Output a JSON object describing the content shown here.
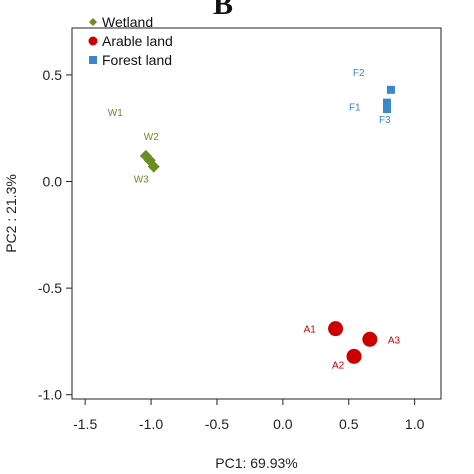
{
  "chart_data": {
    "type": "scatter",
    "panel_label": "B",
    "xlabel": "PC1: 69.93%",
    "ylabel": "PC2 : 21.3%",
    "xlim": [
      -1.6,
      1.2
    ],
    "ylim": [
      -1.02,
      0.72
    ],
    "xticks": [
      -1.5,
      -1.0,
      -0.5,
      0.0,
      0.5,
      1.0
    ],
    "xtick_labels": [
      "-1.5",
      "-1.0",
      "-0.5",
      "0.0",
      "0.5",
      "1.0"
    ],
    "yticks": [
      -1.0,
      -0.5,
      0.0,
      0.5
    ],
    "ytick_labels": [
      "-1.0",
      "-0.5",
      "0.0",
      "0.5"
    ],
    "grid": false,
    "legend_position": "top-left",
    "series": [
      {
        "name": "Wetland",
        "color": "#6b8e23",
        "marker": "diamond",
        "points": [
          {
            "label": "W1",
            "x": -1.04,
            "y": 0.12
          },
          {
            "label": "W2",
            "x": -1.01,
            "y": 0.1
          },
          {
            "label": "W3",
            "x": -0.98,
            "y": 0.07
          }
        ]
      },
      {
        "name": "Arable land",
        "color": "#cc0000",
        "marker": "circle",
        "points": [
          {
            "label": "A1",
            "x": 0.4,
            "y": -0.69
          },
          {
            "label": "A2",
            "x": 0.54,
            "y": -0.82
          },
          {
            "label": "A3",
            "x": 0.66,
            "y": -0.74
          }
        ]
      },
      {
        "name": "Forest land",
        "color": "#3a87c9",
        "marker": "square",
        "points": [
          {
            "label": "F2",
            "x": 0.82,
            "y": 0.43
          },
          {
            "label": "F1",
            "x": 0.79,
            "y": 0.37
          },
          {
            "label": "F3",
            "x": 0.79,
            "y": 0.34
          }
        ]
      }
    ]
  }
}
